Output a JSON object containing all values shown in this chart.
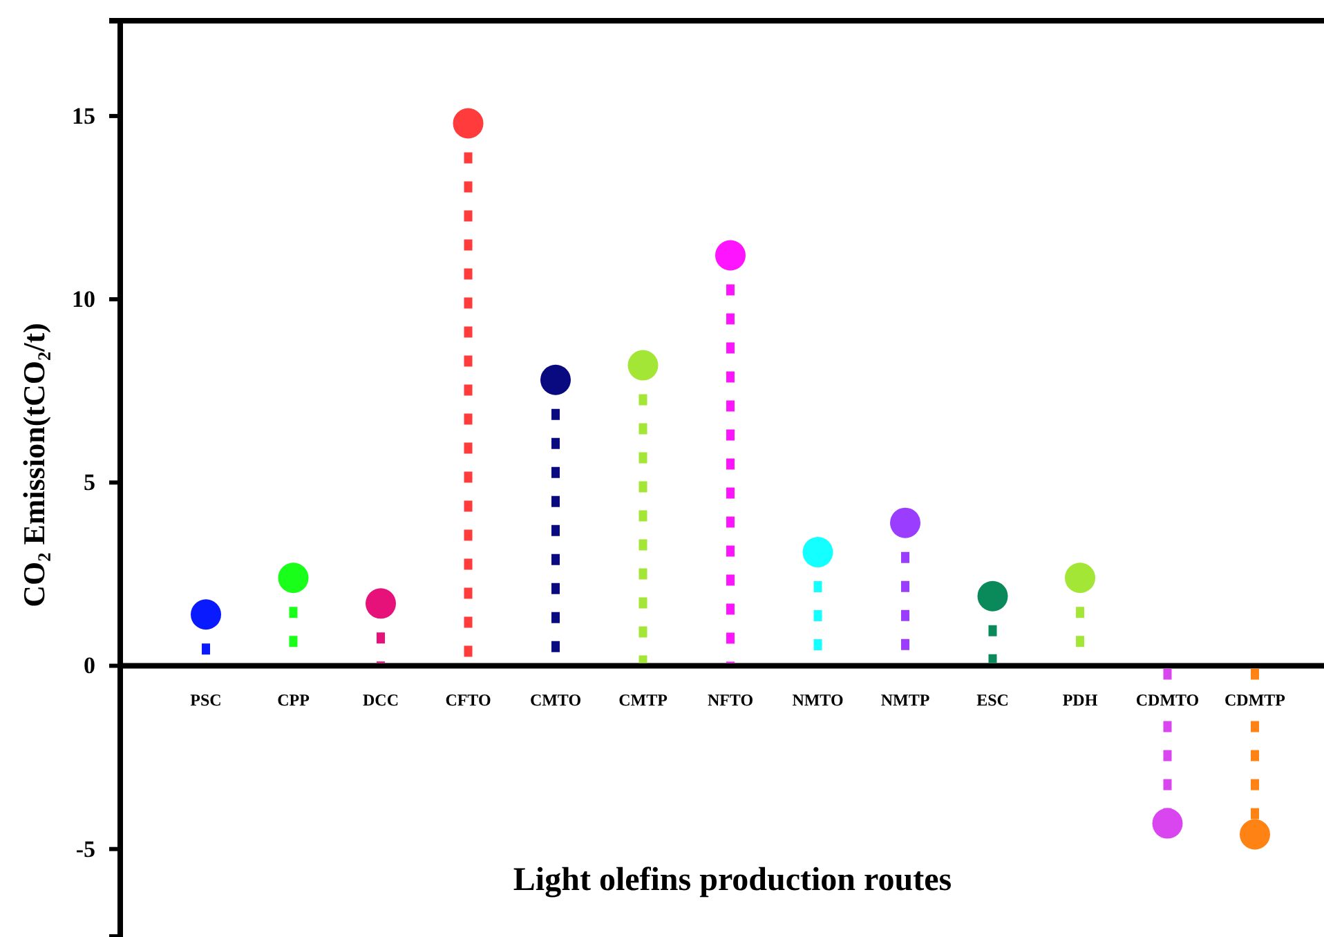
{
  "chart_data": {
    "type": "lollipop",
    "xlabel": "Light olefins production routes",
    "ylabel": "CO₂ Emission(tCO₂/t)",
    "categories": [
      "PSC",
      "CPP",
      "DCC",
      "CFTO",
      "CMTO",
      "CMTP",
      "NFTO",
      "NMTO",
      "NMTP",
      "ESC",
      "PDH",
      "CDMTO",
      "CDMTP"
    ],
    "values": [
      1.4,
      2.4,
      1.7,
      14.8,
      7.8,
      8.2,
      11.2,
      3.1,
      3.9,
      1.9,
      2.4,
      -4.3,
      -4.6
    ],
    "colors": [
      "#0a1aff",
      "#1aff1a",
      "#e6127a",
      "#ff3b3b",
      "#0a0a80",
      "#a3e635",
      "#ff14ff",
      "#14ffff",
      "#9b3dff",
      "#0a8a5a",
      "#a3e635",
      "#d946ef",
      "#ff8214"
    ],
    "ylim": [
      -7.4,
      17.6
    ],
    "yticks": [
      -5,
      0,
      5,
      10,
      15
    ],
    "grid": false,
    "marker": "circle",
    "line_style": "dashed"
  }
}
